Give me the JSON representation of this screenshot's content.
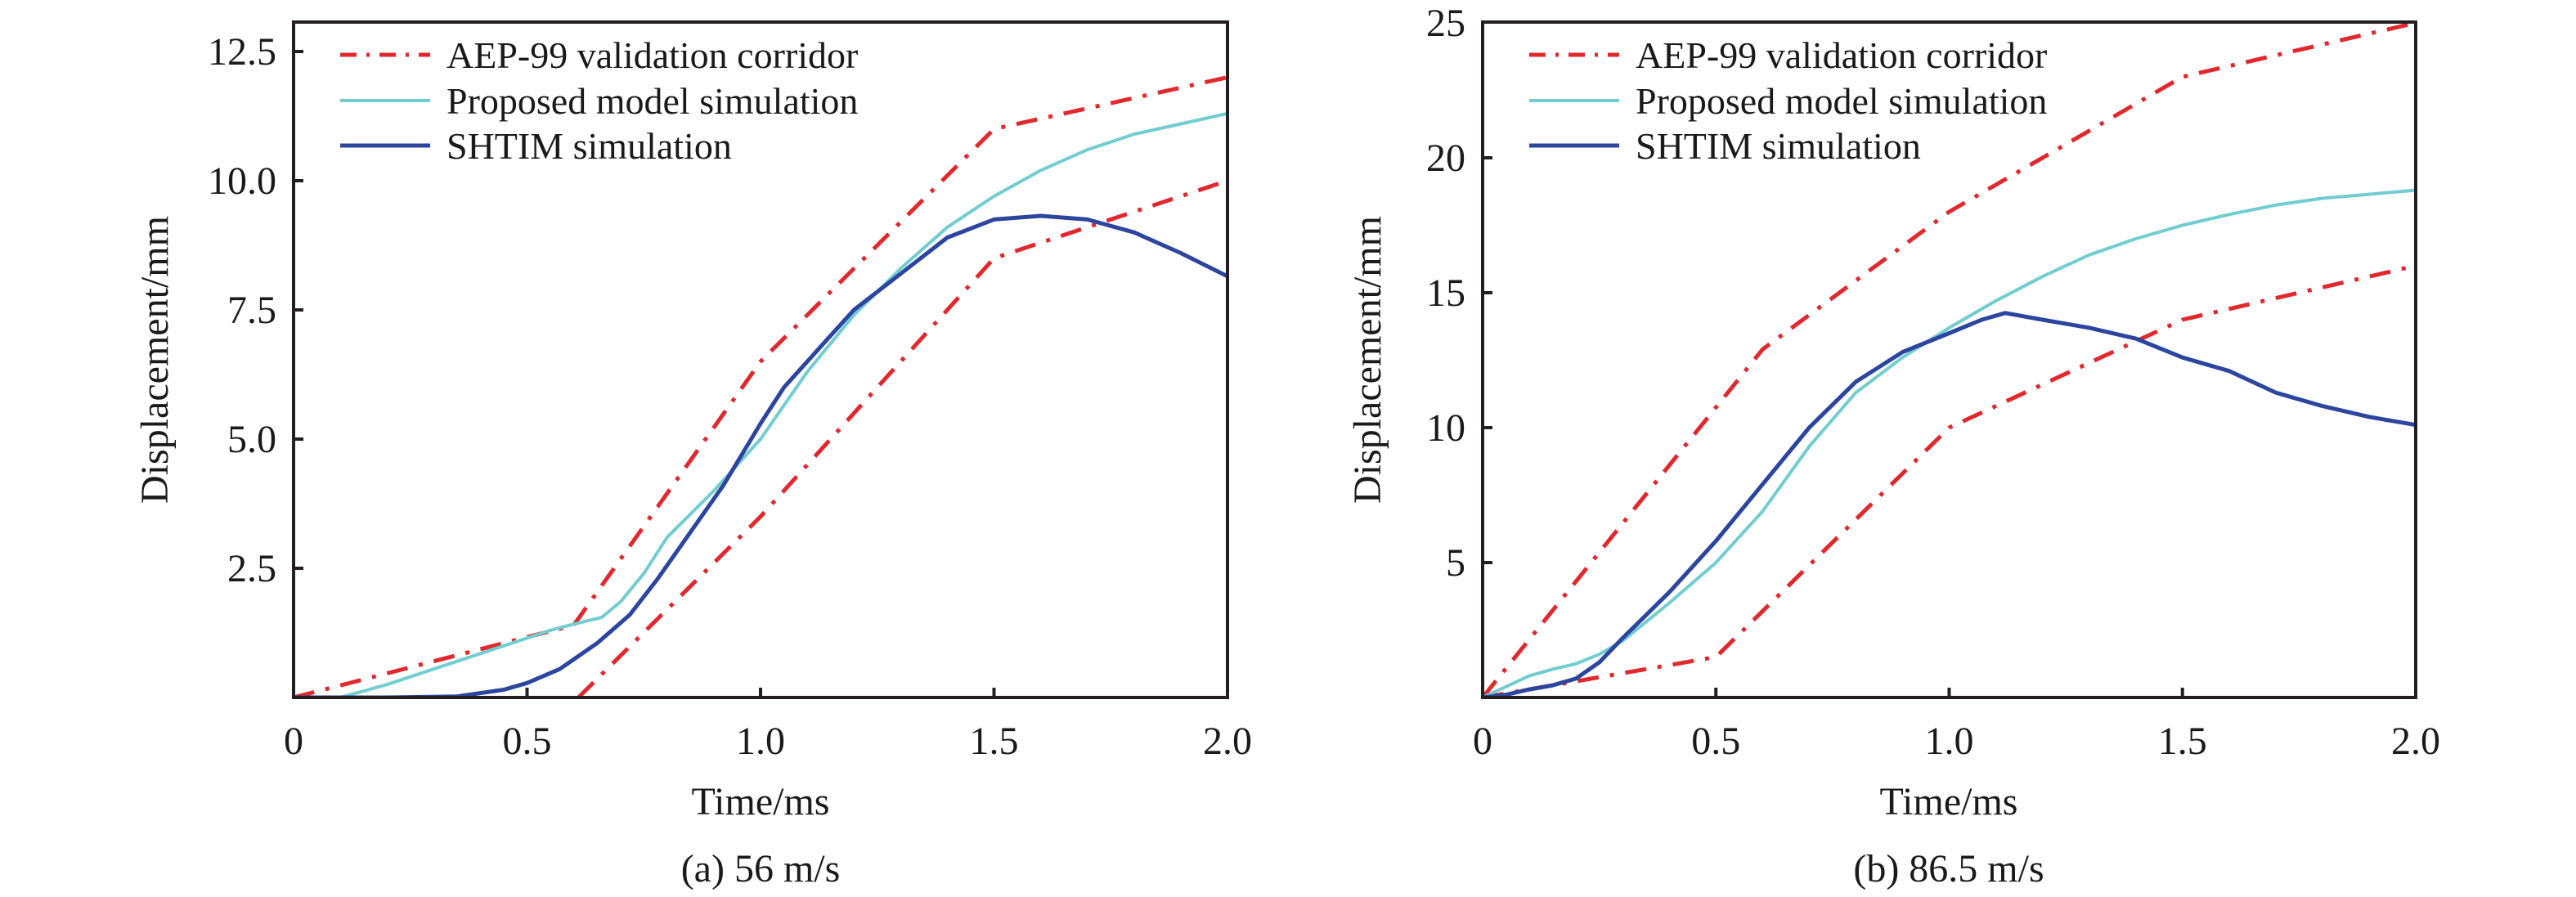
{
  "colors": {
    "corridor": "#e0282d",
    "proposed": "#72cdd1",
    "shtim": "#2c46a0",
    "axis": "#231f20"
  },
  "legend": [
    {
      "key": "corridor",
      "label": "AEP-99 validation corridor",
      "style": "dash-dot"
    },
    {
      "key": "proposed",
      "label": "Proposed model simulation",
      "style": "solid"
    },
    {
      "key": "shtim",
      "label": "SHTIM simulation",
      "style": "solid"
    }
  ],
  "chart_data": [
    {
      "type": "line",
      "caption": "(a) 56 m/s",
      "xlabel": "Time/ms",
      "ylabel": "Displacement/mm",
      "xlim": [
        0,
        2.0
      ],
      "ylim": [
        0,
        13.2
      ],
      "xticks": [
        0,
        0.5,
        1.0,
        1.5,
        2.0
      ],
      "xtick_labels": [
        "0",
        "0.5",
        "1.0",
        "1.5",
        "2.0"
      ],
      "yticks": [
        2.5,
        5.0,
        7.5,
        10.0,
        12.5
      ],
      "ytick_labels": [
        "2.5",
        "5.0",
        "7.5",
        "10.0",
        "12.5"
      ],
      "grid": false,
      "legend_position": "top-left",
      "series": [
        {
          "name": "AEP-99 validation corridor (upper)",
          "key": "corridor",
          "x": [
            0,
            0.6,
            1.0,
            1.5,
            2.0
          ],
          "y": [
            0,
            1.4,
            6.5,
            11.0,
            12.0
          ]
        },
        {
          "name": "AEP-99 validation corridor (lower)",
          "key": "corridor",
          "x": [
            0.61,
            1.0,
            1.5,
            2.0
          ],
          "y": [
            0,
            3.5,
            8.5,
            10.0
          ]
        },
        {
          "name": "Proposed model simulation",
          "key": "proposed",
          "x": [
            0,
            0.1,
            0.2,
            0.3,
            0.4,
            0.5,
            0.55,
            0.6,
            0.66,
            0.7,
            0.75,
            0.8,
            0.9,
            1.0,
            1.1,
            1.2,
            1.3,
            1.4,
            1.5,
            1.6,
            1.7,
            1.8,
            1.9,
            2.0
          ],
          "y": [
            0,
            0.0,
            0.25,
            0.55,
            0.85,
            1.15,
            1.3,
            1.42,
            1.55,
            1.85,
            2.4,
            3.1,
            4.0,
            5.0,
            6.3,
            7.4,
            8.3,
            9.1,
            9.7,
            10.2,
            10.6,
            10.9,
            11.1,
            11.3
          ]
        },
        {
          "name": "SHTIM simulation",
          "key": "shtim",
          "x": [
            0,
            0.2,
            0.35,
            0.45,
            0.5,
            0.57,
            0.65,
            0.72,
            0.78,
            0.85,
            0.92,
            1.0,
            1.05,
            1.1,
            1.15,
            1.2,
            1.3,
            1.4,
            1.5,
            1.6,
            1.7,
            1.8,
            1.9,
            2.0
          ],
          "y": [
            0,
            0,
            0.02,
            0.15,
            0.28,
            0.55,
            1.05,
            1.6,
            2.3,
            3.2,
            4.1,
            5.3,
            6.0,
            6.5,
            7.0,
            7.5,
            8.2,
            8.9,
            9.25,
            9.32,
            9.25,
            9.0,
            8.6,
            8.15
          ]
        }
      ]
    },
    {
      "type": "line",
      "caption": "(b) 86.5 m/s",
      "xlabel": "Time/ms",
      "ylabel": "Displacement/mm",
      "xlim": [
        0,
        2.0
      ],
      "ylim": [
        0,
        25
      ],
      "xticks": [
        0,
        0.5,
        1.0,
        1.5,
        2.0
      ],
      "xtick_labels": [
        "0",
        "0.5",
        "1.0",
        "1.5",
        "2.0"
      ],
      "yticks": [
        5,
        10,
        15,
        20,
        25
      ],
      "ytick_labels": [
        "5",
        "10",
        "15",
        "20",
        "25"
      ],
      "grid": false,
      "legend_position": "top-left",
      "series": [
        {
          "name": "AEP-99 validation corridor (upper)",
          "key": "corridor",
          "x": [
            0,
            0.6,
            1.0,
            1.5,
            2.0
          ],
          "y": [
            0,
            12.9,
            18.0,
            23.0,
            25.0
          ]
        },
        {
          "name": "AEP-99 validation corridor (lower)",
          "key": "corridor",
          "x": [
            0,
            0.5,
            1.0,
            1.5,
            2.0
          ],
          "y": [
            0,
            1.5,
            10.0,
            14.0,
            16.0
          ]
        },
        {
          "name": "Proposed model simulation",
          "key": "proposed",
          "x": [
            0,
            0.05,
            0.1,
            0.15,
            0.2,
            0.25,
            0.3,
            0.4,
            0.5,
            0.6,
            0.7,
            0.8,
            0.9,
            1.0,
            1.1,
            1.2,
            1.3,
            1.4,
            1.5,
            1.6,
            1.7,
            1.8,
            1.9,
            2.0
          ],
          "y": [
            0,
            0.4,
            0.8,
            1.05,
            1.25,
            1.6,
            2.1,
            3.5,
            5.0,
            6.9,
            9.3,
            11.3,
            12.6,
            13.7,
            14.7,
            15.6,
            16.4,
            17.0,
            17.5,
            17.9,
            18.25,
            18.5,
            18.65,
            18.8
          ]
        },
        {
          "name": "SHTIM simulation",
          "key": "shtim",
          "x": [
            0,
            0.05,
            0.1,
            0.15,
            0.2,
            0.25,
            0.3,
            0.4,
            0.5,
            0.6,
            0.7,
            0.8,
            0.9,
            1.0,
            1.07,
            1.12,
            1.2,
            1.3,
            1.4,
            1.5,
            1.6,
            1.7,
            1.8,
            1.9,
            2.0
          ],
          "y": [
            0,
            0.1,
            0.3,
            0.45,
            0.7,
            1.3,
            2.2,
            3.9,
            5.8,
            7.9,
            10.0,
            11.7,
            12.8,
            13.5,
            14.0,
            14.25,
            14.0,
            13.7,
            13.3,
            12.6,
            12.1,
            11.3,
            10.8,
            10.4,
            10.1
          ]
        }
      ]
    }
  ]
}
